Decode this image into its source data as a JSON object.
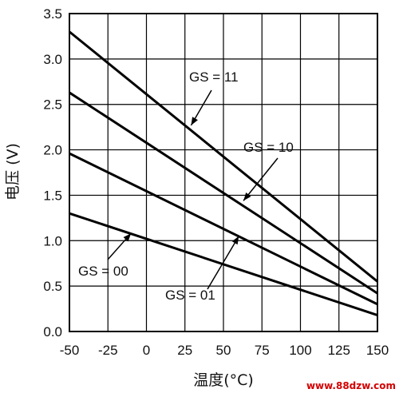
{
  "chart_data": {
    "type": "line",
    "xlabel": "温度(°C)",
    "ylabel": "电压 (V)",
    "xlim": [
      -50,
      150
    ],
    "ylim": [
      0,
      3.5
    ],
    "x_ticks": [
      "-50",
      "-25",
      "0",
      "25",
      "50",
      "75",
      "100",
      "125",
      "150"
    ],
    "y_ticks": [
      "0.0",
      "0.5",
      "1.0",
      "1.5",
      "2.0",
      "2.5",
      "3.0",
      "3.5"
    ],
    "grid": true,
    "series": [
      {
        "name": "GS = 11",
        "x": [
          -50,
          150
        ],
        "y": [
          3.3,
          0.55
        ]
      },
      {
        "name": "GS = 10",
        "x": [
          -50,
          150
        ],
        "y": [
          2.63,
          0.42
        ]
      },
      {
        "name": "GS = 01",
        "x": [
          -50,
          150
        ],
        "y": [
          1.96,
          0.3
        ]
      },
      {
        "name": "GS = 00",
        "x": [
          -50,
          150
        ],
        "y": [
          1.3,
          0.18
        ]
      }
    ],
    "annotations": [
      {
        "text": "GS = 11",
        "points_to": [
          29,
          2.27
        ]
      },
      {
        "text": "GS = 10",
        "points_to": [
          63,
          1.44
        ]
      },
      {
        "text": "GS = 01",
        "points_to": [
          60,
          1.05
        ]
      },
      {
        "text": "GS = 00",
        "points_to": [
          -10,
          1.08
        ]
      }
    ]
  },
  "watermark": "www.88dzw.com",
  "colors": {
    "line": "#000000",
    "grid": "#000000",
    "watermark": "#d40000"
  }
}
